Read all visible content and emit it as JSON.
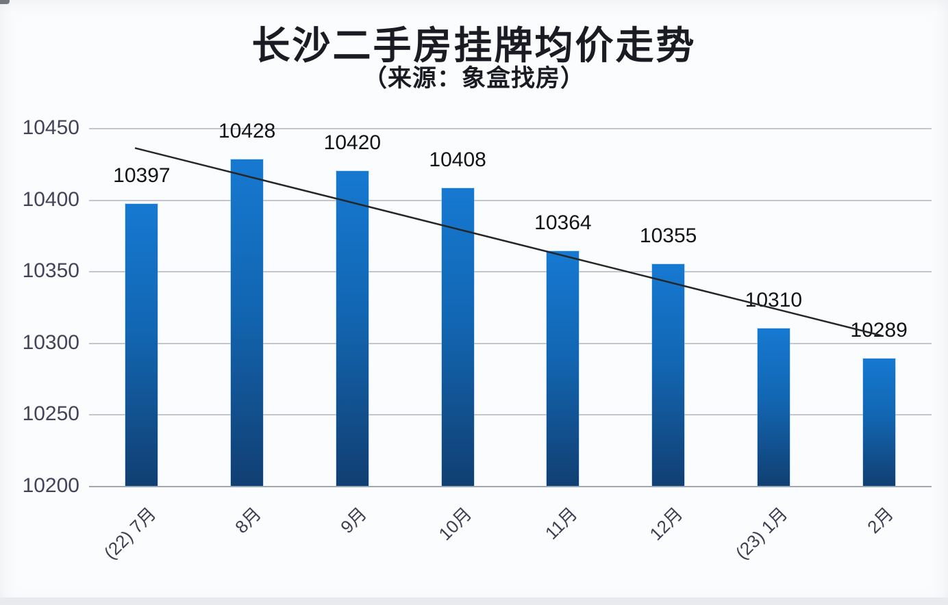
{
  "chart": {
    "title": "长沙二手房挂牌均价走势",
    "subtitle": "（来源：象盒找房）"
  },
  "chart_data": {
    "type": "bar",
    "title": "长沙二手房挂牌均价走势",
    "subtitle": "（来源：象盒找房）",
    "categories": [
      "(22) 7月",
      "8月",
      "9月",
      "10月",
      "11月",
      "12月",
      "(23) 1月",
      "2月"
    ],
    "values": [
      10397,
      10428,
      10420,
      10408,
      10364,
      10355,
      10310,
      10289
    ],
    "data_labels": [
      "10397",
      "10428",
      "10420",
      "10408",
      "10364",
      "10355",
      "10310",
      "10289"
    ],
    "y_ticks": [
      10450,
      10400,
      10350,
      10300,
      10250,
      10200
    ],
    "ylim": [
      10200,
      10450
    ],
    "xlabel": "",
    "ylabel": "",
    "grid": "horizontal",
    "legend": "none",
    "trendline": {
      "type": "linear",
      "from_x_frac": 0.0545,
      "from_value": 10436,
      "to_x_frac": 0.9407,
      "to_value": 10305
    },
    "colors": {
      "bar_gradient_top": "#1679d1",
      "bar_gradient_bottom": "#113f72",
      "trend_line": "#262626",
      "gridline": "#c3c7cd",
      "axis_line": "#a2a7ae",
      "tick_label": "#46425a",
      "data_label": "#141418",
      "title": "#1b1b24",
      "background": "#fbfcfd"
    }
  }
}
